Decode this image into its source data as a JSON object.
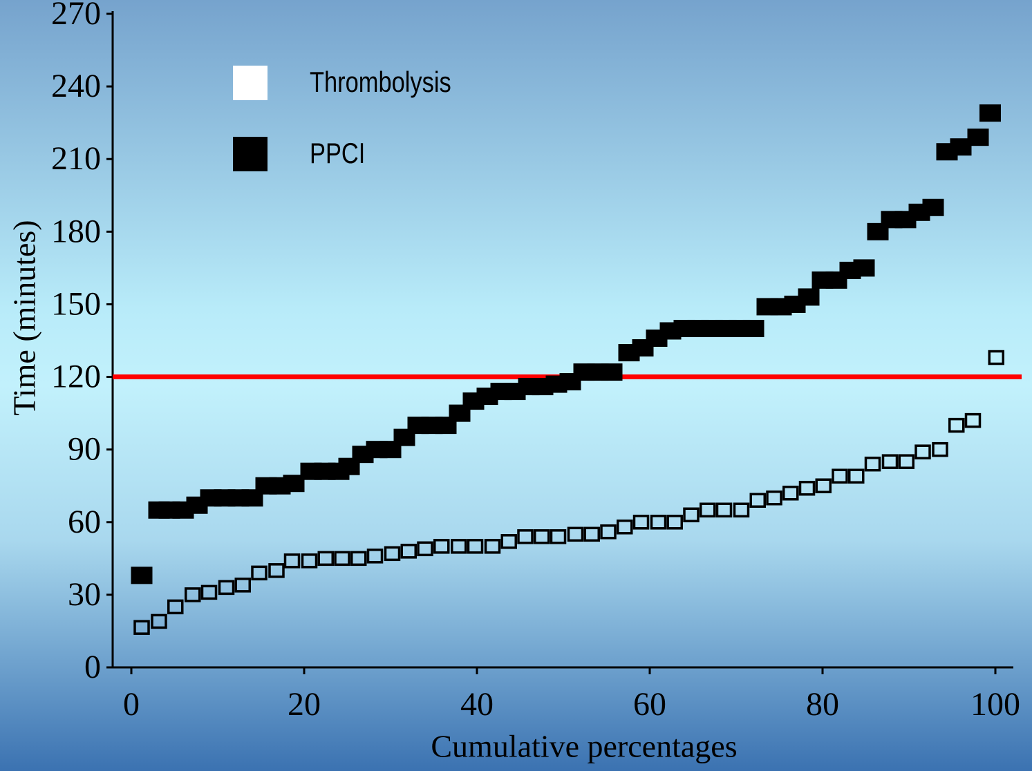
{
  "chart_data": {
    "type": "scatter",
    "xlabel": "Cumulative percentages",
    "ylabel": "Time (minutes)",
    "xlim": [
      -2.2,
      102
    ],
    "ylim": [
      0,
      270
    ],
    "xticks": [
      0,
      20,
      40,
      60,
      80,
      100
    ],
    "yticks": [
      0,
      30,
      60,
      90,
      120,
      150,
      180,
      210,
      240,
      270
    ],
    "reference_line": {
      "value": 120,
      "color": "#ff0000"
    },
    "legend": "upper left",
    "series": [
      {
        "name": "Thrombolysis",
        "color": "#ffffff",
        "edgecolor": "#000000",
        "marker": "open",
        "x": [
          1.2,
          3.2,
          5.1,
          7.1,
          9,
          11,
          12.9,
          14.8,
          16.8,
          18.6,
          20.6,
          22.5,
          24.4,
          26.3,
          28.2,
          30.2,
          32.1,
          34,
          35.9,
          37.9,
          39.8,
          41.8,
          43.7,
          45.6,
          47.5,
          49.4,
          51.4,
          53.3,
          55.2,
          57.1,
          59,
          61,
          62.9,
          64.8,
          66.7,
          68.6,
          70.6,
          72.5,
          74.4,
          76.3,
          78.2,
          80.1,
          82,
          83.9,
          85.8,
          87.8,
          89.7,
          91.6,
          93.6,
          95.5,
          97.4,
          100.1
        ],
        "values": [
          16.5,
          19,
          25,
          30,
          31,
          33,
          34,
          39,
          40,
          44,
          44,
          45,
          45,
          45,
          46,
          47,
          48,
          49,
          50,
          50,
          50,
          50,
          52,
          54,
          54,
          54,
          55,
          55,
          56,
          58,
          60,
          60,
          60,
          63,
          65,
          65,
          65,
          69,
          70,
          72,
          74,
          75,
          79,
          79,
          84,
          85,
          85,
          89,
          90,
          100,
          102,
          128
        ]
      },
      {
        "name": "PPCI",
        "color": "#000000",
        "edgecolor": "#000000",
        "marker": "filled",
        "x": [
          1.2,
          3.2,
          4.4,
          6,
          7.6,
          9.2,
          10.8,
          12.4,
          14,
          15.6,
          17.2,
          18.8,
          20.8,
          22.4,
          24,
          25.2,
          26.8,
          28.4,
          30,
          31.6,
          33.2,
          34.8,
          36.4,
          38,
          39.6,
          41.2,
          42.8,
          44.4,
          46,
          47.6,
          49.2,
          50.8,
          52.4,
          54,
          55.6,
          57.6,
          59.2,
          60.8,
          62.4,
          64,
          65.6,
          67.2,
          68.8,
          70.4,
          72,
          73.6,
          75.2,
          76.8,
          78.4,
          80,
          81.6,
          83.2,
          84.8,
          86.4,
          88,
          89.6,
          91.2,
          92.8,
          94.4,
          96,
          98,
          99.4
        ],
        "values": [
          38,
          65,
          65,
          65,
          67,
          70,
          70,
          70,
          70,
          75,
          75,
          76,
          81,
          81,
          81,
          83,
          88,
          90,
          90,
          95,
          100,
          100,
          100,
          105,
          110,
          112,
          114,
          114,
          116,
          116,
          117,
          118,
          122,
          122,
          122,
          130,
          132,
          136,
          139,
          140,
          140,
          140,
          140,
          140,
          140,
          149,
          149,
          150,
          153,
          160,
          160,
          164,
          165,
          180,
          185,
          185,
          188,
          190,
          213,
          215,
          219,
          229
        ]
      }
    ]
  }
}
